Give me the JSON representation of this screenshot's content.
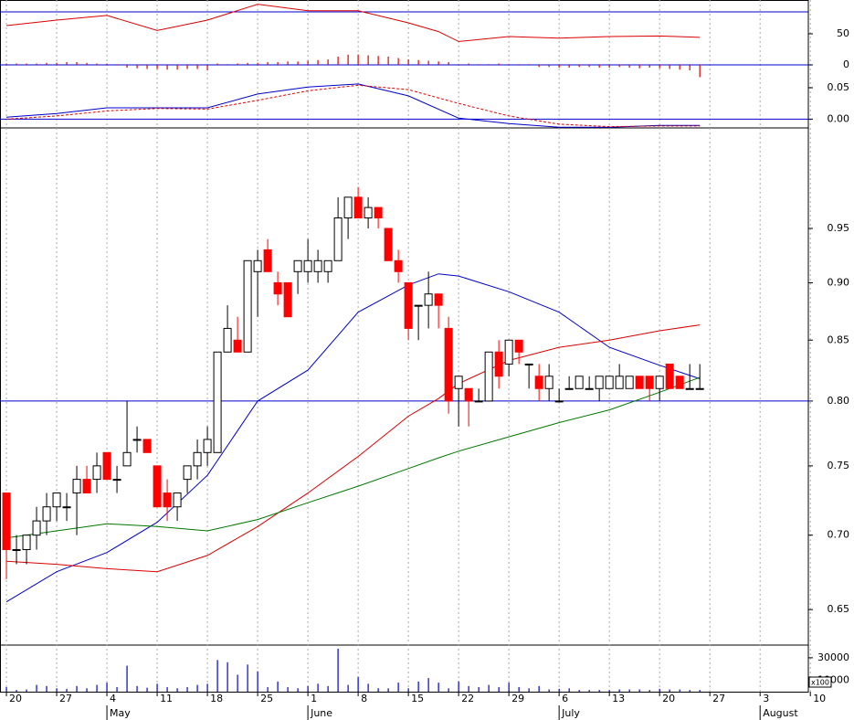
{
  "chart_data": [
    {
      "type": "line",
      "name": "rsi",
      "ylim": [
        22.5,
        80.8
      ],
      "yticks": [
        50
      ],
      "ref_lines": [
        70
      ],
      "ref_color": "#0000cc",
      "x": [
        0,
        5,
        10,
        15,
        20,
        25,
        30,
        35,
        40,
        43,
        45,
        50,
        55,
        60,
        65,
        69
      ],
      "series": [
        {
          "color": "#dd0000",
          "values": [
            57.5,
            62.5,
            66.7,
            53,
            62.5,
            77,
            71,
            71,
            60,
            52,
            43,
            47.5,
            46,
            47.5,
            48,
            46.7
          ]
        }
      ]
    },
    {
      "type": "bar",
      "name": "macd-histogram",
      "ylim": [
        -0.02,
        0.02
      ],
      "yticks": [
        0
      ],
      "ref_lines": [
        0
      ],
      "ref_color": "#0000cc",
      "color": "#dd0000",
      "values": [
        0.002,
        0.002,
        0.002,
        0.002,
        0.003,
        0.003,
        0.004,
        0.004,
        0.003,
        0.002,
        0.002,
        0.001,
        -0.004,
        -0.005,
        -0.006,
        -0.006,
        -0.007,
        -0.007,
        -0.006,
        -0.006,
        -0.008,
        0.002,
        0.001,
        0.002,
        0.003,
        0.003,
        0.004,
        0.004,
        0.005,
        0.005,
        0.006,
        0.007,
        0.008,
        0.012,
        0.015,
        0.015,
        0.014,
        0.013,
        0.012,
        0.01,
        0.008,
        0.007,
        0.006,
        0.005,
        0.004,
        0.001,
        0.002,
        0.001,
        0.001,
        0.002,
        0.001,
        0.001,
        0.001,
        -0.003,
        -0.003,
        -0.004,
        -0.004,
        -0.003,
        -0.003,
        -0.004,
        -0.004,
        -0.003,
        -0.004,
        -0.005,
        -0.004,
        -0.005,
        -0.006,
        -0.007,
        -0.008,
        -0.018
      ]
    },
    {
      "type": "line",
      "name": "macd",
      "ylim": [
        -0.014,
        0.082
      ],
      "yticks": [
        {
          "value": 0.05,
          "label": "0.05"
        },
        {
          "value": 0,
          "label": "0.00"
        }
      ],
      "ref_lines": [
        0
      ],
      "ref_color": "#0000cc",
      "x": [
        0,
        5,
        10,
        15,
        20,
        25,
        30,
        35,
        40,
        45,
        50,
        55,
        60,
        65,
        69
      ],
      "series": [
        {
          "color": "#0000cc",
          "values": [
            0.003,
            0.009,
            0.018,
            0.018,
            0.018,
            0.04,
            0.051,
            0.056,
            0.037,
            0.0015,
            -0.007,
            -0.013,
            -0.013,
            -0.01,
            -0.01
          ]
        },
        {
          "color": "#dd0000",
          "dashed": true,
          "values": [
            0,
            0.005,
            0.013,
            0.017,
            0.016,
            0.03,
            0.045,
            0.054,
            0.047,
            0.025,
            0.005,
            -0.008,
            -0.012,
            -0.011,
            -0.011
          ]
        }
      ]
    },
    {
      "type": "candlestick",
      "name": "price",
      "log_scale": true,
      "ylim": [
        0.628,
        1.05
      ],
      "xlim": [
        -0.64,
        79.8
      ],
      "yticks": [
        0.95,
        {
          "value": 0.9,
          "label": "0.90"
        },
        0.85,
        {
          "value": 0.8,
          "label": "0.80"
        },
        0.75,
        {
          "value": 0.7,
          "label": "0.70"
        },
        0.65
      ],
      "ref_lines": [
        0.8
      ],
      "ref_color": "#0000cc",
      "up_color": "#ffffff",
      "down_color": "#ff0000",
      "xticks": [
        {
          "value": 0,
          "label": "20"
        },
        {
          "value": 5,
          "label": "27"
        },
        {
          "value": 10,
          "label": "4"
        },
        {
          "value": 15,
          "label": "11"
        },
        {
          "value": 20,
          "label": "18"
        },
        {
          "value": 25,
          "label": "25"
        },
        {
          "value": 30,
          "label": "1"
        },
        {
          "value": 35,
          "label": "8"
        },
        {
          "value": 40,
          "label": "15"
        },
        {
          "value": 45,
          "label": "22"
        },
        {
          "value": 50,
          "label": "29"
        },
        {
          "value": 55,
          "label": "6"
        },
        {
          "value": 60,
          "label": "13"
        },
        {
          "value": 65,
          "label": "20"
        },
        {
          "value": 70,
          "label": "27"
        },
        {
          "value": 75,
          "label": "3"
        },
        {
          "value": 80,
          "label": "10"
        }
      ],
      "months": [
        {
          "value": 10,
          "label": "May"
        },
        {
          "value": 30,
          "label": "June"
        },
        {
          "value": 55,
          "label": "July"
        },
        {
          "value": 75,
          "label": "August"
        }
      ],
      "open": [
        0.73,
        0.69,
        0.69,
        0.7,
        0.71,
        0.72,
        0.72,
        0.73,
        0.74,
        0.74,
        0.76,
        0.74,
        0.75,
        0.77,
        0.77,
        0.75,
        0.73,
        0.72,
        0.74,
        0.75,
        0.76,
        0.76,
        0.84,
        0.85,
        0.84,
        0.91,
        0.93,
        0.9,
        0.9,
        0.91,
        0.91,
        0.91,
        0.91,
        0.92,
        0.96,
        0.98,
        0.96,
        0.97,
        0.95,
        0.92,
        0.9,
        0.88,
        0.88,
        0.89,
        0.86,
        0.81,
        0.81,
        0.8,
        0.8,
        0.84,
        0.83,
        0.85,
        0.83,
        0.82,
        0.81,
        0.8,
        0.81,
        0.81,
        0.81,
        0.81,
        0.81,
        0.81,
        0.81,
        0.82,
        0.82,
        0.81,
        0.83,
        0.82,
        0.81,
        0.81
      ],
      "high": [
        0.73,
        0.7,
        0.7,
        0.72,
        0.73,
        0.73,
        0.73,
        0.75,
        0.75,
        0.76,
        0.76,
        0.75,
        0.8,
        0.78,
        0.77,
        0.75,
        0.74,
        0.73,
        0.75,
        0.77,
        0.78,
        0.84,
        0.88,
        0.87,
        0.92,
        0.93,
        0.94,
        0.91,
        0.9,
        0.92,
        0.94,
        0.93,
        0.92,
        0.98,
        0.98,
        0.99,
        0.98,
        0.97,
        0.95,
        0.93,
        0.9,
        0.88,
        0.91,
        0.89,
        0.87,
        0.82,
        0.81,
        0.81,
        0.84,
        0.85,
        0.85,
        0.85,
        0.83,
        0.83,
        0.83,
        0.81,
        0.82,
        0.82,
        0.82,
        0.82,
        0.82,
        0.83,
        0.82,
        0.82,
        0.82,
        0.82,
        0.83,
        0.82,
        0.83,
        0.83
      ],
      "low": [
        0.67,
        0.68,
        0.68,
        0.69,
        0.7,
        0.71,
        0.71,
        0.7,
        0.73,
        0.73,
        0.74,
        0.73,
        0.75,
        0.76,
        0.76,
        0.72,
        0.71,
        0.71,
        0.73,
        0.74,
        0.75,
        0.76,
        0.84,
        0.84,
        0.84,
        0.87,
        0.91,
        0.88,
        0.87,
        0.89,
        0.9,
        0.9,
        0.9,
        0.92,
        0.94,
        0.96,
        0.95,
        0.95,
        0.92,
        0.9,
        0.85,
        0.85,
        0.86,
        0.86,
        0.79,
        0.78,
        0.78,
        0.8,
        0.8,
        0.81,
        0.82,
        0.83,
        0.81,
        0.8,
        0.8,
        0.8,
        0.81,
        0.81,
        0.81,
        0.8,
        0.81,
        0.81,
        0.81,
        0.81,
        0.8,
        0.8,
        0.81,
        0.81,
        0.81,
        0.81
      ],
      "close": [
        0.69,
        0.69,
        0.7,
        0.71,
        0.72,
        0.73,
        0.72,
        0.74,
        0.73,
        0.75,
        0.74,
        0.74,
        0.76,
        0.77,
        0.76,
        0.72,
        0.72,
        0.73,
        0.75,
        0.76,
        0.77,
        0.84,
        0.86,
        0.84,
        0.92,
        0.92,
        0.91,
        0.89,
        0.87,
        0.92,
        0.92,
        0.92,
        0.92,
        0.96,
        0.98,
        0.96,
        0.97,
        0.96,
        0.92,
        0.91,
        0.86,
        0.88,
        0.89,
        0.88,
        0.8,
        0.82,
        0.8,
        0.8,
        0.84,
        0.82,
        0.85,
        0.84,
        0.83,
        0.81,
        0.82,
        0.8,
        0.81,
        0.82,
        0.81,
        0.82,
        0.82,
        0.82,
        0.82,
        0.81,
        0.81,
        0.82,
        0.81,
        0.81,
        0.81,
        0.81
      ],
      "overlays": {
        "x": [
          0,
          5,
          10,
          15,
          20,
          25,
          30,
          35,
          40,
          43,
          45,
          50,
          55,
          60,
          65,
          69
        ],
        "series": [
          {
            "color": "#0000cc",
            "values": [
              0.655,
              0.675,
              0.688,
              0.709,
              0.743,
              0.8,
              0.825,
              0.874,
              0.898,
              0.908,
              0.906,
              0.892,
              0.874,
              0.844,
              0.829,
              0.818
            ]
          },
          {
            "color": "#dd0000",
            "values": [
              0.682,
              0.68,
              0.677,
              0.675,
              0.686,
              0.706,
              0.73,
              0.757,
              0.788,
              0.802,
              0.814,
              0.833,
              0.844,
              0.85,
              0.858,
              0.863
            ]
          },
          {
            "color": "#007700",
            "values": [
              0.698,
              0.703,
              0.708,
              0.706,
              0.703,
              0.711,
              0.723,
              0.735,
              0.748,
              0.756,
              0.761,
              0.772,
              0.783,
              0.793,
              0.807,
              0.819
            ]
          }
        ]
      }
    },
    {
      "type": "bar",
      "name": "volume",
      "ylim": [
        0,
        40400
      ],
      "yticks": [
        30000,
        10000
      ],
      "y_unit": "x100",
      "color": "#0000cc",
      "values": [
        4000,
        1500,
        2000,
        6000,
        5000,
        3000,
        2500,
        5000,
        3000,
        6000,
        8000,
        4000,
        23000,
        5000,
        3500,
        7000,
        4000,
        3000,
        4000,
        6000,
        7000,
        28000,
        26000,
        15000,
        24000,
        18000,
        4000,
        9000,
        4000,
        3000,
        5000,
        7000,
        5000,
        38000,
        6000,
        13000,
        7000,
        3000,
        3000,
        8000,
        3000,
        9000,
        12000,
        8000,
        3000,
        9000,
        5000,
        4000,
        6000,
        4000,
        8000,
        4000,
        3000,
        5000,
        2000,
        2500,
        3000,
        1500,
        1500,
        1500,
        1500,
        2000,
        2000,
        2000,
        1500,
        2500,
        2000,
        2000,
        1500,
        1500
      ]
    }
  ]
}
